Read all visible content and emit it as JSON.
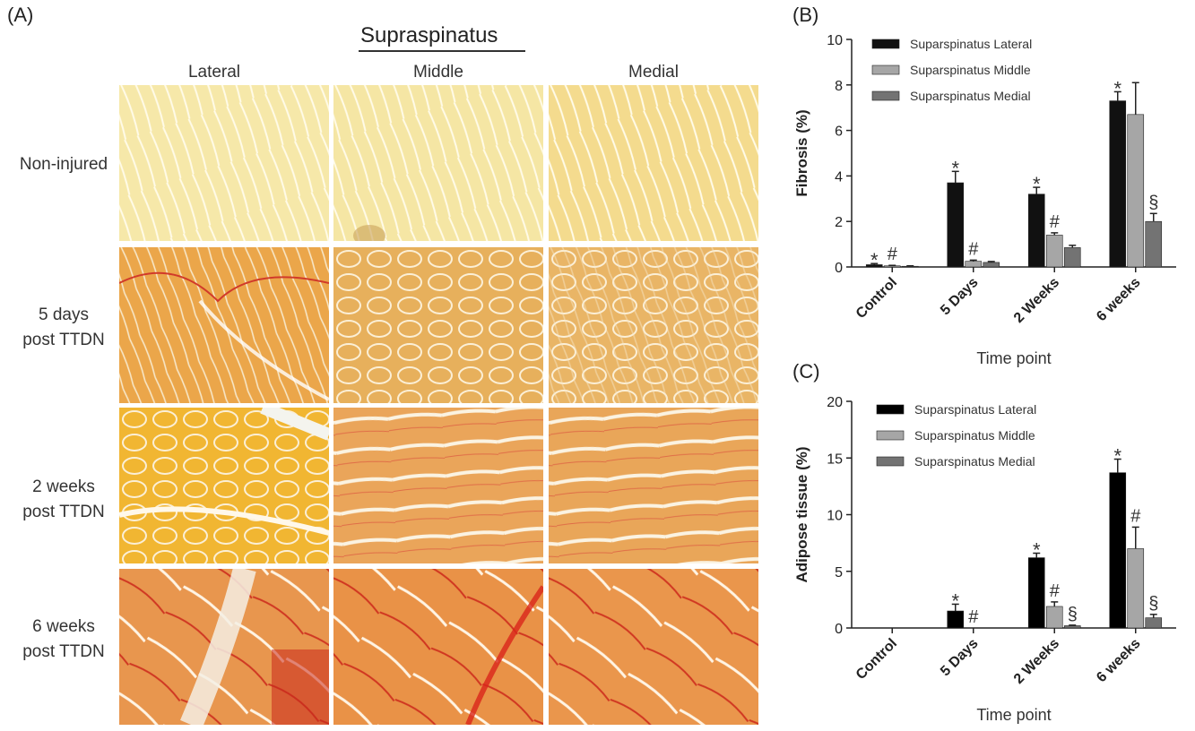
{
  "panel_a": {
    "letter": "(A)",
    "title": "Supraspinatus",
    "columns": [
      "Lateral",
      "Middle",
      "Medial"
    ],
    "rows": [
      {
        "line1": "Non-injured",
        "line2": ""
      },
      {
        "line1": "5 days",
        "line2": "post TTDN"
      },
      {
        "line1": "2 weeks",
        "line2": "post TTDN"
      },
      {
        "line1": "6 weeks",
        "line2": "post TTDN"
      }
    ]
  },
  "chart_data": [
    {
      "panel": "(B)",
      "type": "bar",
      "ylabel": "Fibrosis (%)",
      "xlabel": "Time point",
      "ylim": [
        0,
        10
      ],
      "yticks": [
        "0",
        "2",
        "4",
        "6",
        "8",
        "10"
      ],
      "categories": [
        "Control",
        "5 Days",
        "2 Weeks",
        "6 weeks"
      ],
      "legend_position": "top-left",
      "series": [
        {
          "name": "Suparspinatus Lateral",
          "color": "#111111",
          "values": [
            0.1,
            3.7,
            3.2,
            7.3
          ],
          "errors": [
            0.05,
            0.5,
            0.3,
            0.4
          ],
          "marks": [
            "*",
            "*",
            "*",
            "*"
          ]
        },
        {
          "name": "Suparspinatus Middle",
          "color": "#a6a6a6",
          "values": [
            0.05,
            0.25,
            1.4,
            6.7
          ],
          "errors": [
            0.02,
            0.05,
            0.1,
            1.4
          ],
          "marks": [
            "#",
            "#",
            "#",
            ""
          ]
        },
        {
          "name": "Suparspinatus Medial",
          "color": "#737373",
          "values": [
            0.03,
            0.2,
            0.85,
            2.0
          ],
          "errors": [
            0.02,
            0.04,
            0.1,
            0.35
          ],
          "marks": [
            "",
            "",
            "",
            "§"
          ]
        }
      ]
    },
    {
      "panel": "(C)",
      "type": "bar",
      "ylabel": "Adipose tissue (%)",
      "xlabel": "Time point",
      "ylim": [
        0,
        20
      ],
      "yticks": [
        "0",
        "5",
        "10",
        "15",
        "20"
      ],
      "categories": [
        "Control",
        "5 Days",
        "2 Weeks",
        "6 weeks"
      ],
      "legend_position": "top-left",
      "series": [
        {
          "name": "Suparspinatus Lateral",
          "color": "#000000",
          "values": [
            0,
            1.5,
            6.2,
            13.7
          ],
          "errors": [
            0,
            0.6,
            0.4,
            1.2
          ],
          "marks": [
            "",
            "*",
            "*",
            "*"
          ]
        },
        {
          "name": "Suparspinatus Middle",
          "color": "#a6a6a6",
          "values": [
            0,
            0,
            1.9,
            7.0
          ],
          "errors": [
            0,
            0,
            0.4,
            1.9
          ],
          "marks": [
            "",
            "#",
            "#",
            "#"
          ]
        },
        {
          "name": "Suparspinatus Medial",
          "color": "#737373",
          "values": [
            0,
            0,
            0.2,
            0.9
          ],
          "errors": [
            0,
            0,
            0.05,
            0.3
          ],
          "marks": [
            "",
            "",
            "§",
            "§"
          ]
        }
      ]
    }
  ]
}
